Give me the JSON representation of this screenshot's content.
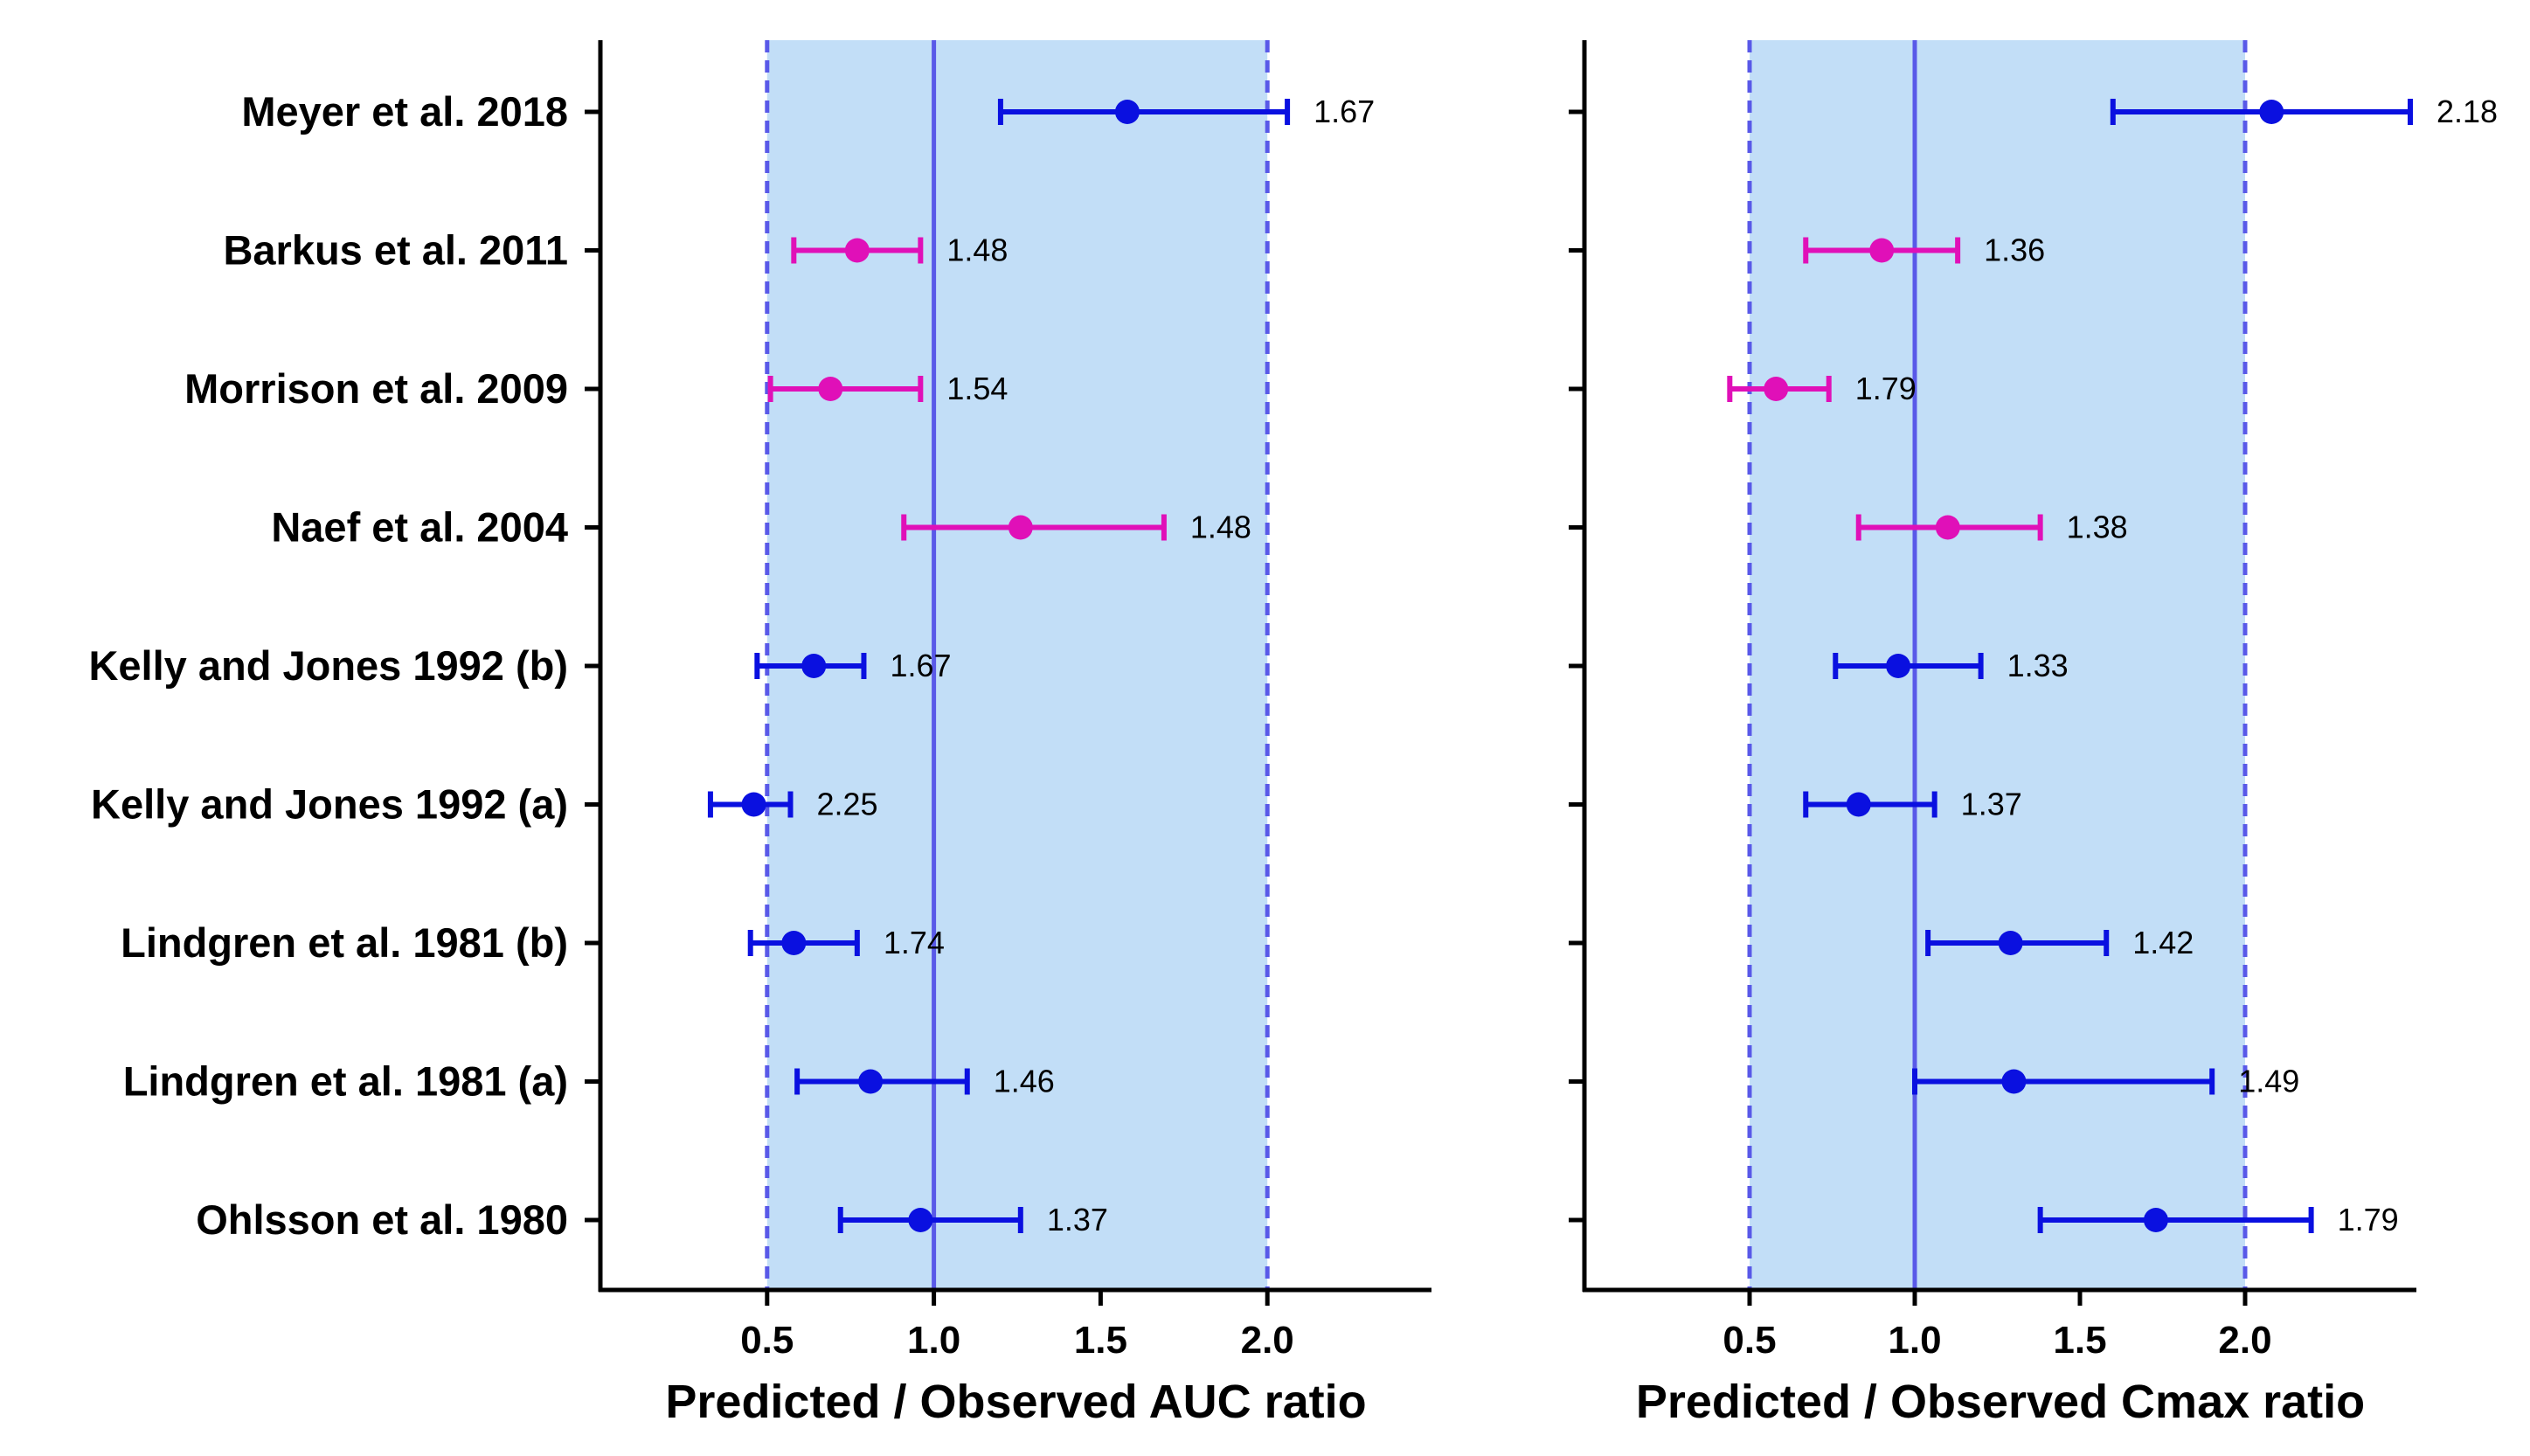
{
  "colors": {
    "band": "#c2def7",
    "reference": "#5959e8",
    "blue": "#0a10e0",
    "magenta": "#e010b8",
    "axis": "#000000"
  },
  "studies": [
    "Meyer et al. 2018",
    "Barkus et al. 2011",
    "Morrison et al. 2009",
    "Naef et al. 2004",
    "Kelly and Jones 1992 (b)",
    "Kelly and Jones 1992 (a)",
    "Lindgren et al. 1981 (b)",
    "Lindgren et al. 1981 (a)",
    "Ohlsson et al. 1980"
  ],
  "chart_data": [
    {
      "type": "forest",
      "xlabel": "Predicted / Observed AUC ratio",
      "xlim": [
        0,
        2.5
      ],
      "xticks": [
        "0.5",
        "1.0",
        "1.5",
        "2.0"
      ],
      "acceptance_range": [
        0.5,
        2.0
      ],
      "reference_line": 1.0,
      "points": [
        {
          "study": "Meyer et al. 2018",
          "ratio": 1.58,
          "low": 1.2,
          "high": 2.06,
          "label": "1.67",
          "color": "blue"
        },
        {
          "study": "Barkus et al. 2011",
          "ratio": 0.77,
          "low": 0.58,
          "high": 0.96,
          "label": "1.48",
          "color": "magenta"
        },
        {
          "study": "Morrison et al. 2009",
          "ratio": 0.69,
          "low": 0.51,
          "high": 0.96,
          "label": "1.54",
          "color": "magenta"
        },
        {
          "study": "Naef et al. 2004",
          "ratio": 1.26,
          "low": 0.91,
          "high": 1.69,
          "label": "1.48",
          "color": "magenta"
        },
        {
          "study": "Kelly and Jones 1992 (b)",
          "ratio": 0.64,
          "low": 0.47,
          "high": 0.79,
          "label": "1.67",
          "color": "blue"
        },
        {
          "study": "Kelly and Jones 1992 (a)",
          "ratio": 0.46,
          "low": 0.33,
          "high": 0.57,
          "label": "2.25",
          "color": "blue"
        },
        {
          "study": "Lindgren et al. 1981 (b)",
          "ratio": 0.58,
          "low": 0.45,
          "high": 0.77,
          "label": "1.74",
          "color": "blue"
        },
        {
          "study": "Lindgren et al. 1981 (a)",
          "ratio": 0.81,
          "low": 0.59,
          "high": 1.1,
          "label": "1.46",
          "color": "blue"
        },
        {
          "study": "Ohlsson et al. 1980",
          "ratio": 0.96,
          "low": 0.72,
          "high": 1.26,
          "label": "1.37",
          "color": "blue"
        }
      ]
    },
    {
      "type": "forest",
      "xlabel": "Predicted / Observed Cmax ratio",
      "xlim": [
        0,
        2.5
      ],
      "xticks": [
        "0.5",
        "1.0",
        "1.5",
        "2.0"
      ],
      "acceptance_range": [
        0.5,
        2.0
      ],
      "reference_line": 1.0,
      "points": [
        {
          "study": "Meyer et al. 2018",
          "ratio": 2.08,
          "low": 1.6,
          "high": 2.5,
          "label": "2.18",
          "color": "blue"
        },
        {
          "study": "Barkus et al. 2011",
          "ratio": 0.9,
          "low": 0.67,
          "high": 1.13,
          "label": "1.36",
          "color": "magenta"
        },
        {
          "study": "Morrison et al. 2009",
          "ratio": 0.58,
          "low": 0.44,
          "high": 0.74,
          "label": "1.79",
          "color": "magenta"
        },
        {
          "study": "Naef et al. 2004",
          "ratio": 1.1,
          "low": 0.83,
          "high": 1.38,
          "label": "1.38",
          "color": "magenta"
        },
        {
          "study": "Kelly and Jones 1992 (b)",
          "ratio": 0.95,
          "low": 0.76,
          "high": 1.2,
          "label": "1.33",
          "color": "blue"
        },
        {
          "study": "Kelly and Jones 1992 (a)",
          "ratio": 0.83,
          "low": 0.67,
          "high": 1.06,
          "label": "1.37",
          "color": "blue"
        },
        {
          "study": "Lindgren et al. 1981 (b)",
          "ratio": 1.29,
          "low": 1.04,
          "high": 1.58,
          "label": "1.42",
          "color": "blue"
        },
        {
          "study": "Lindgren et al. 1981 (a)",
          "ratio": 1.3,
          "low": 1.0,
          "high": 1.9,
          "label": "1.49",
          "color": "blue"
        },
        {
          "study": "Ohlsson et al. 1980",
          "ratio": 1.73,
          "low": 1.38,
          "high": 2.2,
          "label": "1.79",
          "color": "blue"
        }
      ]
    }
  ]
}
